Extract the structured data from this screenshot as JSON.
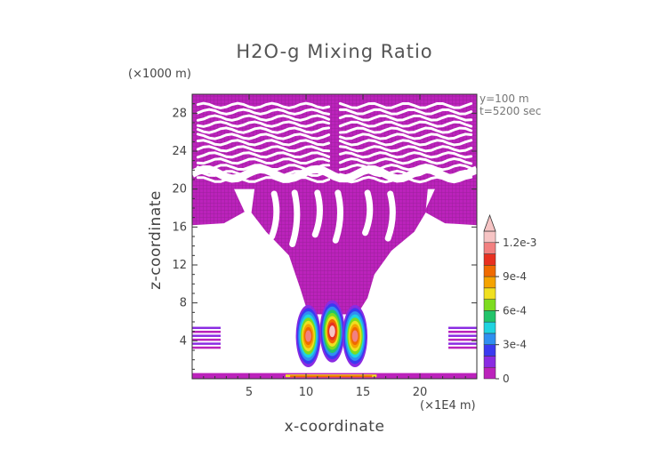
{
  "chart_data": {
    "type": "heatmap",
    "title": "H2O-g Mixing Ratio",
    "xlabel": "x-coordinate",
    "ylabel": "z-coordinate",
    "x_unit": "(×1E4 m)",
    "z_unit": "(×1000 m)",
    "annotations": [
      "y=100 m",
      "t=5200 sec"
    ],
    "xlim": [
      0,
      25
    ],
    "ylim": [
      0,
      30
    ],
    "x_ticks": [
      5,
      10,
      15,
      20
    ],
    "y_ticks": [
      4,
      8,
      12,
      16,
      20,
      24,
      28
    ],
    "colorbar": {
      "range": [
        0,
        0.0013
      ],
      "tick_values": [
        0,
        0.0003,
        0.0006,
        0.0009,
        0.0012
      ],
      "tick_labels": [
        "0",
        "3e-4",
        "6e-4",
        "9e-4",
        "1.2e-3"
      ],
      "colors": [
        "#bb22bb",
        "#8a2be2",
        "#3a3af0",
        "#2f8ff0",
        "#1fd3e0",
        "#22c46a",
        "#7ddc1f",
        "#f0e020",
        "#f5a300",
        "#f06a00",
        "#e83020",
        "#f28080",
        "#f6c4c4"
      ],
      "extend": "max"
    },
    "regions": {
      "upper_layer": {
        "z_range": [
          20,
          30
        ],
        "x_range": [
          0,
          25
        ],
        "level": "low, near 0"
      },
      "mid_plume": {
        "z_range": [
          6,
          20
        ],
        "x_range": [
          5.5,
          20.5
        ],
        "level": "low, near 0"
      },
      "core_plumes": [
        {
          "x": 10.2,
          "z_peak": 4.5,
          "max": 0.0011
        },
        {
          "x": 12.3,
          "z_peak": 5.0,
          "max": 0.0012
        },
        {
          "x": 14.3,
          "z_peak": 4.5,
          "max": 0.0011
        }
      ],
      "side_bands": [
        {
          "x_range": [
            0,
            2.5
          ],
          "z_range": [
            3,
            5.5
          ]
        },
        {
          "x_range": [
            22.5,
            25
          ],
          "z_range": [
            3,
            5.5
          ]
        }
      ],
      "surface_layer": {
        "z_range": [
          0,
          0.6
        ],
        "x_range": [
          0,
          25
        ],
        "level": "up to ~8e-4"
      }
    }
  }
}
